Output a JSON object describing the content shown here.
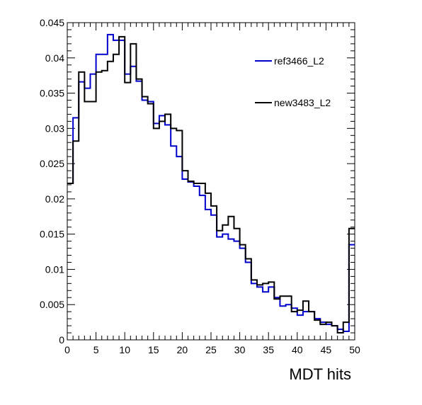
{
  "chart_data": {
    "type": "line",
    "step": true,
    "xlabel": "MDT hits",
    "ylabel": "",
    "xlim": [
      0,
      50
    ],
    "ylim": [
      0,
      0.045
    ],
    "x_ticks": [
      "0",
      "5",
      "10",
      "15",
      "20",
      "25",
      "30",
      "35",
      "40",
      "45",
      "50"
    ],
    "y_ticks": [
      "0",
      "0.005",
      "0.01",
      "0.015",
      "0.02",
      "0.025",
      "0.03",
      "0.035",
      "0.04",
      "0.045"
    ],
    "x_tick_values": [
      0,
      5,
      10,
      15,
      20,
      25,
      30,
      35,
      40,
      45,
      50
    ],
    "y_tick_values": [
      0,
      0.005,
      0.01,
      0.015,
      0.02,
      0.025,
      0.03,
      0.035,
      0.04,
      0.045
    ],
    "legend_position": "top-right",
    "bin_edges_start": 0,
    "bin_width": 1,
    "series": [
      {
        "name": "ref3466_L2",
        "color": "#0000cc",
        "values": [
          0.0222,
          0.0315,
          0.0366,
          0.0357,
          0.0377,
          0.0405,
          0.0405,
          0.0433,
          0.0425,
          0.0425,
          0.0377,
          0.0388,
          0.0367,
          0.034,
          0.0338,
          0.0307,
          0.0318,
          0.0305,
          0.0275,
          0.026,
          0.0228,
          0.0224,
          0.0218,
          0.0205,
          0.0185,
          0.0177,
          0.0146,
          0.015,
          0.0143,
          0.014,
          0.013,
          0.011,
          0.008,
          0.0075,
          0.0068,
          0.0075,
          0.006,
          0.0048,
          0.005,
          0.0045,
          0.0035,
          0.004,
          0.004,
          0.003,
          0.0025,
          0.0022,
          0.002,
          0.0015,
          0.0012,
          0.0135
        ]
      },
      {
        "name": "new3483_L2",
        "color": "#000000",
        "values": [
          0.0222,
          0.0282,
          0.038,
          0.0338,
          0.0338,
          0.038,
          0.0382,
          0.0395,
          0.0405,
          0.043,
          0.0365,
          0.042,
          0.037,
          0.0345,
          0.0335,
          0.03,
          0.031,
          0.032,
          0.03,
          0.0297,
          0.024,
          0.0225,
          0.0222,
          0.0222,
          0.0208,
          0.019,
          0.0155,
          0.0163,
          0.0175,
          0.0158,
          0.0135,
          0.0115,
          0.0085,
          0.0078,
          0.008,
          0.0082,
          0.0058,
          0.0062,
          0.0062,
          0.004,
          0.0042,
          0.0055,
          0.004,
          0.0028,
          0.0022,
          0.0025,
          0.002,
          0.001,
          0.0025,
          0.0158
        ]
      }
    ]
  }
}
